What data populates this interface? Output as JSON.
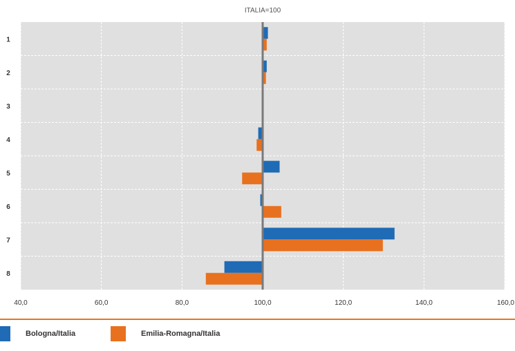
{
  "colors": {
    "plot_bg": "#e0e0e0",
    "grid": "#ffffff",
    "bologna": "#1f6bb5",
    "emilia": "#e8711f",
    "reference_line": "#7a7a7a",
    "divider": "#e8711f"
  },
  "chart_data": {
    "type": "bar",
    "orientation": "horizontal",
    "title": "ITALIA=100",
    "xlabel": "",
    "ylabel": "",
    "categories": [
      "1",
      "2",
      "3",
      "4",
      "5",
      "6",
      "7",
      "8"
    ],
    "xlim": [
      40,
      160
    ],
    "x_ticks": [
      "40,0",
      "60,0",
      "80,0",
      "100,0",
      "120,0",
      "140,0",
      "160,0"
    ],
    "baseline": 100,
    "grid": true,
    "legend_position": "bottom",
    "series": [
      {
        "name": "Bologna/Italia",
        "values": [
          101.3,
          101.0,
          100.0,
          98.9,
          104.2,
          99.4,
          132.7,
          90.5
        ],
        "color": "#1f6bb5"
      },
      {
        "name": "Emilia-Romagna/Italia",
        "values": [
          101.0,
          100.8,
          100.0,
          98.5,
          94.9,
          104.6,
          129.8,
          85.9
        ],
        "color": "#e8711f"
      }
    ]
  },
  "legend": {
    "items": [
      {
        "label": "Bologna/Italia",
        "color": "#1f6bb5"
      },
      {
        "label": "Emilia-Romagna/Italia",
        "color": "#e8711f"
      }
    ]
  }
}
